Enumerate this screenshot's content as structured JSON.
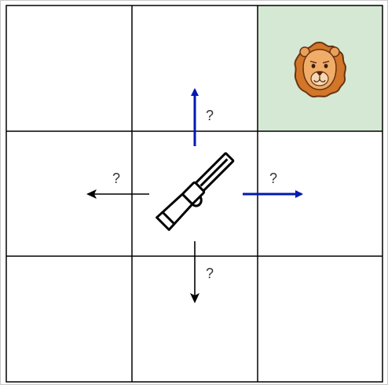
{
  "grid": {
    "rows": 3,
    "cols": 3,
    "highlight_color": "#d5e8d4",
    "line_color": "#000000"
  },
  "lion": {
    "icon": "lion-face-icon",
    "row": 0,
    "col": 2
  },
  "hunter": {
    "icon": "rifle-icon",
    "row": 1,
    "col": 1
  },
  "moves": [
    {
      "direction": "up",
      "label": "?",
      "color": "#0019b0"
    },
    {
      "direction": "right",
      "label": "?",
      "color": "#0019b0"
    },
    {
      "direction": "left",
      "label": "?",
      "color": "#000000"
    },
    {
      "direction": "down",
      "label": "?",
      "color": "#000000"
    }
  ]
}
